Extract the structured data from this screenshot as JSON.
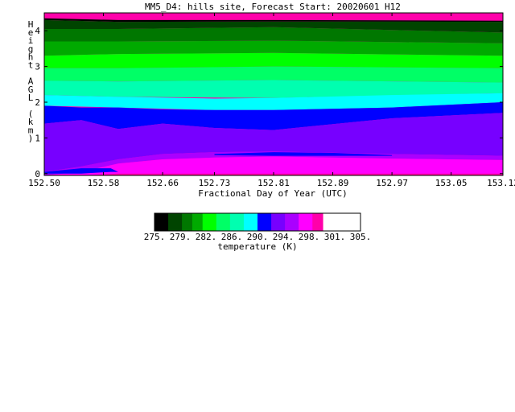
{
  "chart_data": {
    "type": "heatmap",
    "title": "MM5_D4: hills site,  Forecast Start: 20020601 H12",
    "xlabel": "Fractional Day of Year (UTC)",
    "ylabel": "Height AGL (km)",
    "xlim": [
      152.5,
      153.12
    ],
    "ylim": [
      -0.05,
      4.5
    ],
    "x_ticks": [
      "152.50",
      "152.58",
      "152.66",
      "152.73",
      "152.81",
      "152.89",
      "152.97",
      "153.05",
      "153.12"
    ],
    "y_ticks": [
      "0",
      "1",
      "2",
      "3",
      "4"
    ],
    "colorbar": {
      "label": "temperature (K)",
      "ticks": [
        "275.",
        "279.",
        "282.",
        "286.",
        "290.",
        "294.",
        "298.",
        "301.",
        "305."
      ],
      "levels": [
        275,
        277,
        279,
        280.5,
        282,
        284,
        286,
        288,
        290,
        292,
        294,
        296,
        298,
        299.5,
        301,
        303,
        305
      ],
      "colors": [
        "#000000",
        "#004400",
        "#007700",
        "#00aa00",
        "#00ff00",
        "#00ff66",
        "#00ffb0",
        "#00ffff",
        "#0000ff",
        "#7700ff",
        "#aa00ff",
        "#ff00ff",
        "#ff00aa"
      ]
    },
    "bands": [
      {
        "color": "#000000",
        "x": [
          152.5,
          152.6,
          152.81,
          153.12
        ],
        "top": [
          4.35,
          4.3,
          4.3,
          4.28
        ],
        "bottom": [
          4.3,
          4.25,
          4.26,
          4.25
        ]
      },
      {
        "color": "#004400",
        "x": [
          152.5,
          152.6,
          152.81,
          153.12
        ],
        "top": [
          4.3,
          4.25,
          4.26,
          4.25
        ],
        "bottom": [
          4.05,
          4.05,
          4.1,
          3.95
        ]
      },
      {
        "color": "#007700",
        "x": [
          152.5,
          152.6,
          152.81,
          153.12
        ],
        "top": [
          4.05,
          4.05,
          4.1,
          3.95
        ],
        "bottom": [
          3.7,
          3.7,
          3.72,
          3.65
        ]
      },
      {
        "color": "#00aa00",
        "x": [
          152.5,
          152.6,
          152.81,
          153.12
        ],
        "top": [
          3.7,
          3.7,
          3.72,
          3.65
        ],
        "bottom": [
          3.3,
          3.35,
          3.38,
          3.3
        ]
      },
      {
        "color": "#00ff00",
        "x": [
          152.5,
          152.6,
          152.81,
          153.12
        ],
        "top": [
          3.3,
          3.35,
          3.38,
          3.3
        ],
        "bottom": [
          2.95,
          2.95,
          3.0,
          2.95
        ]
      },
      {
        "color": "#00ff66",
        "x": [
          152.5,
          152.6,
          152.81,
          153.12
        ],
        "top": [
          2.95,
          2.95,
          3.0,
          2.95
        ],
        "bottom": [
          2.6,
          2.58,
          2.62,
          2.55
        ]
      },
      {
        "color": "#00ffb0",
        "x": [
          152.5,
          152.6,
          152.81,
          153.12
        ],
        "top": [
          2.6,
          2.58,
          2.62,
          2.55
        ],
        "bottom": [
          2.2,
          2.15,
          2.12,
          2.25
        ]
      },
      {
        "color": "#00ffff",
        "x": [
          152.5,
          152.6,
          152.73,
          152.81,
          152.97,
          153.12
        ],
        "top": [
          2.2,
          2.15,
          2.1,
          2.12,
          2.2,
          2.25
        ],
        "bottom": [
          1.9,
          1.85,
          1.78,
          1.78,
          1.85,
          2.0
        ]
      },
      {
        "color": "#0000ff",
        "x": [
          152.5,
          152.55,
          152.6,
          152.66,
          152.73,
          152.81,
          152.97,
          153.12
        ],
        "top": [
          1.9,
          1.85,
          1.85,
          1.8,
          1.78,
          1.78,
          1.85,
          2.0
        ],
        "bottom": [
          1.4,
          1.5,
          1.25,
          1.4,
          1.28,
          1.22,
          1.55,
          1.7
        ]
      },
      {
        "color": "#7700ff",
        "x": [
          152.5,
          152.55,
          152.6,
          152.66,
          152.73,
          152.81,
          152.97,
          153.12
        ],
        "top": [
          1.4,
          1.5,
          1.25,
          1.4,
          1.28,
          1.22,
          1.55,
          1.7
        ],
        "bottom": [
          0.05,
          0.2,
          0.4,
          0.55,
          0.6,
          0.62,
          0.55,
          0.5
        ]
      },
      {
        "color": "#aa00ff",
        "x": [
          152.5,
          152.55,
          152.6,
          152.66,
          152.73,
          152.81,
          152.97,
          153.12
        ],
        "top": [
          0.05,
          0.2,
          0.4,
          0.55,
          0.6,
          0.62,
          0.55,
          0.5
        ],
        "bottom": [
          -0.05,
          0.05,
          0.28,
          0.4,
          0.45,
          0.48,
          0.42,
          0.38
        ]
      },
      {
        "color": "#ff00ff",
        "x": [
          152.5,
          152.55,
          152.6,
          152.66,
          152.73,
          152.81,
          152.97,
          153.12
        ],
        "top": [
          -0.05,
          0.05,
          0.28,
          0.4,
          0.45,
          0.48,
          0.42,
          0.38
        ],
        "bottom": [
          -0.05,
          -0.05,
          0.0,
          0.0,
          0.0,
          0.0,
          0.0,
          0.0
        ]
      },
      {
        "color": "#0000ff",
        "x": [
          152.5,
          152.55,
          152.59,
          152.6
        ],
        "top": [
          0.05,
          0.15,
          0.15,
          0.05
        ],
        "bottom": [
          0.0,
          0.0,
          0.05,
          0.05
        ]
      },
      {
        "color": "#0000ff",
        "x": [
          152.73,
          152.81,
          152.89,
          152.97
        ],
        "top": [
          0.55,
          0.6,
          0.58,
          0.52
        ],
        "bottom": [
          0.52,
          0.5,
          0.5,
          0.5
        ]
      }
    ]
  }
}
